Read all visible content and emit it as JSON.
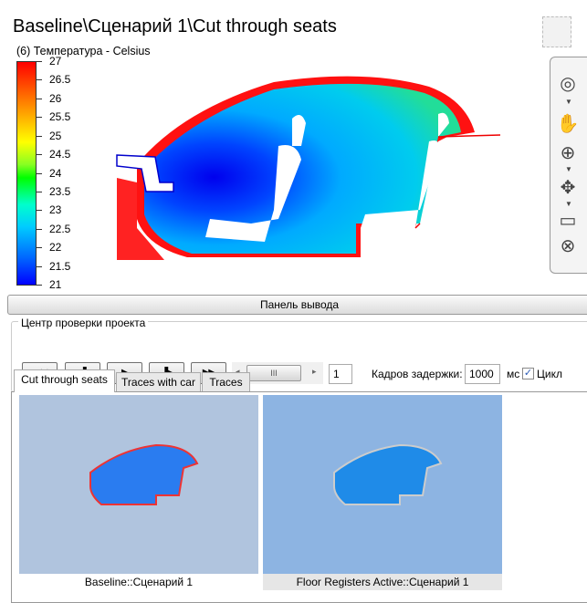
{
  "title": "Baseline\\Сценарий 1\\Cut through seats",
  "subtitle": "(6) Температура - Celsius",
  "legend": {
    "min": 21,
    "max": 27,
    "ticks": [
      "27",
      "26.5",
      "26",
      "25.5",
      "25",
      "24.5",
      "24",
      "23.5",
      "23",
      "22.5",
      "22",
      "21.5",
      "21"
    ],
    "colors": [
      "#ff0000",
      "#ff8000",
      "#ffff00",
      "#00ff00",
      "#00ffcc",
      "#0066ff",
      "#0000ff"
    ]
  },
  "nav_icons": [
    "viewcube-icon",
    "steering-wheel-icon",
    "pan-hand-icon",
    "zoom-icon",
    "orbit-icon",
    "animation-icon",
    "close-circle-icon"
  ],
  "output_panel": "Панель вывода",
  "review_center": {
    "label": "Центр проверки проекта",
    "buttons": [
      "◀◀",
      "◀▌",
      "▶",
      "▐▶",
      "▶▶"
    ],
    "frame": "1",
    "delay_label": "Кадров задержки:",
    "delay_value": "1000",
    "unit": "мс",
    "loop_label": "Цикл",
    "loop_checked": true
  },
  "tabs": [
    {
      "label": "Cut through seats",
      "active": true
    },
    {
      "label": "Traces with car"
    },
    {
      "label": "Traces"
    }
  ],
  "thumbnails": [
    {
      "caption": "Baseline::Сценарий 1",
      "bg": "#b0c4de"
    },
    {
      "caption": "Floor Registers Active::Сценарий 1",
      "bg": "#8db4e2"
    }
  ]
}
